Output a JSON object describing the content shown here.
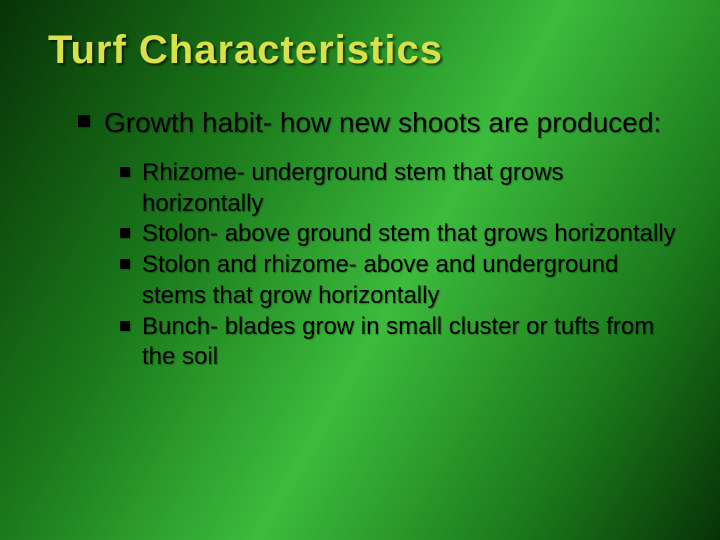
{
  "slide": {
    "title": "Turf Characteristics",
    "title_color": "#d9e04a",
    "title_fontsize": 40,
    "body_color": "#000000",
    "background_gradient": [
      "#073307",
      "#1b7a1b",
      "#3cbb3c",
      "#1b7a1b",
      "#073307"
    ],
    "level1_fontsize": 28,
    "level2_fontsize": 24,
    "bullets_level1": [
      "Growth habit- how new shoots are produced:"
    ],
    "bullets_level2": [
      "Rhizome- underground stem that grows horizontally",
      "Stolon- above ground stem that grows horizontally",
      "Stolon and rhizome- above and underground stems that grow horizontally",
      "Bunch- blades grow in small cluster or tufts from the soil"
    ]
  }
}
